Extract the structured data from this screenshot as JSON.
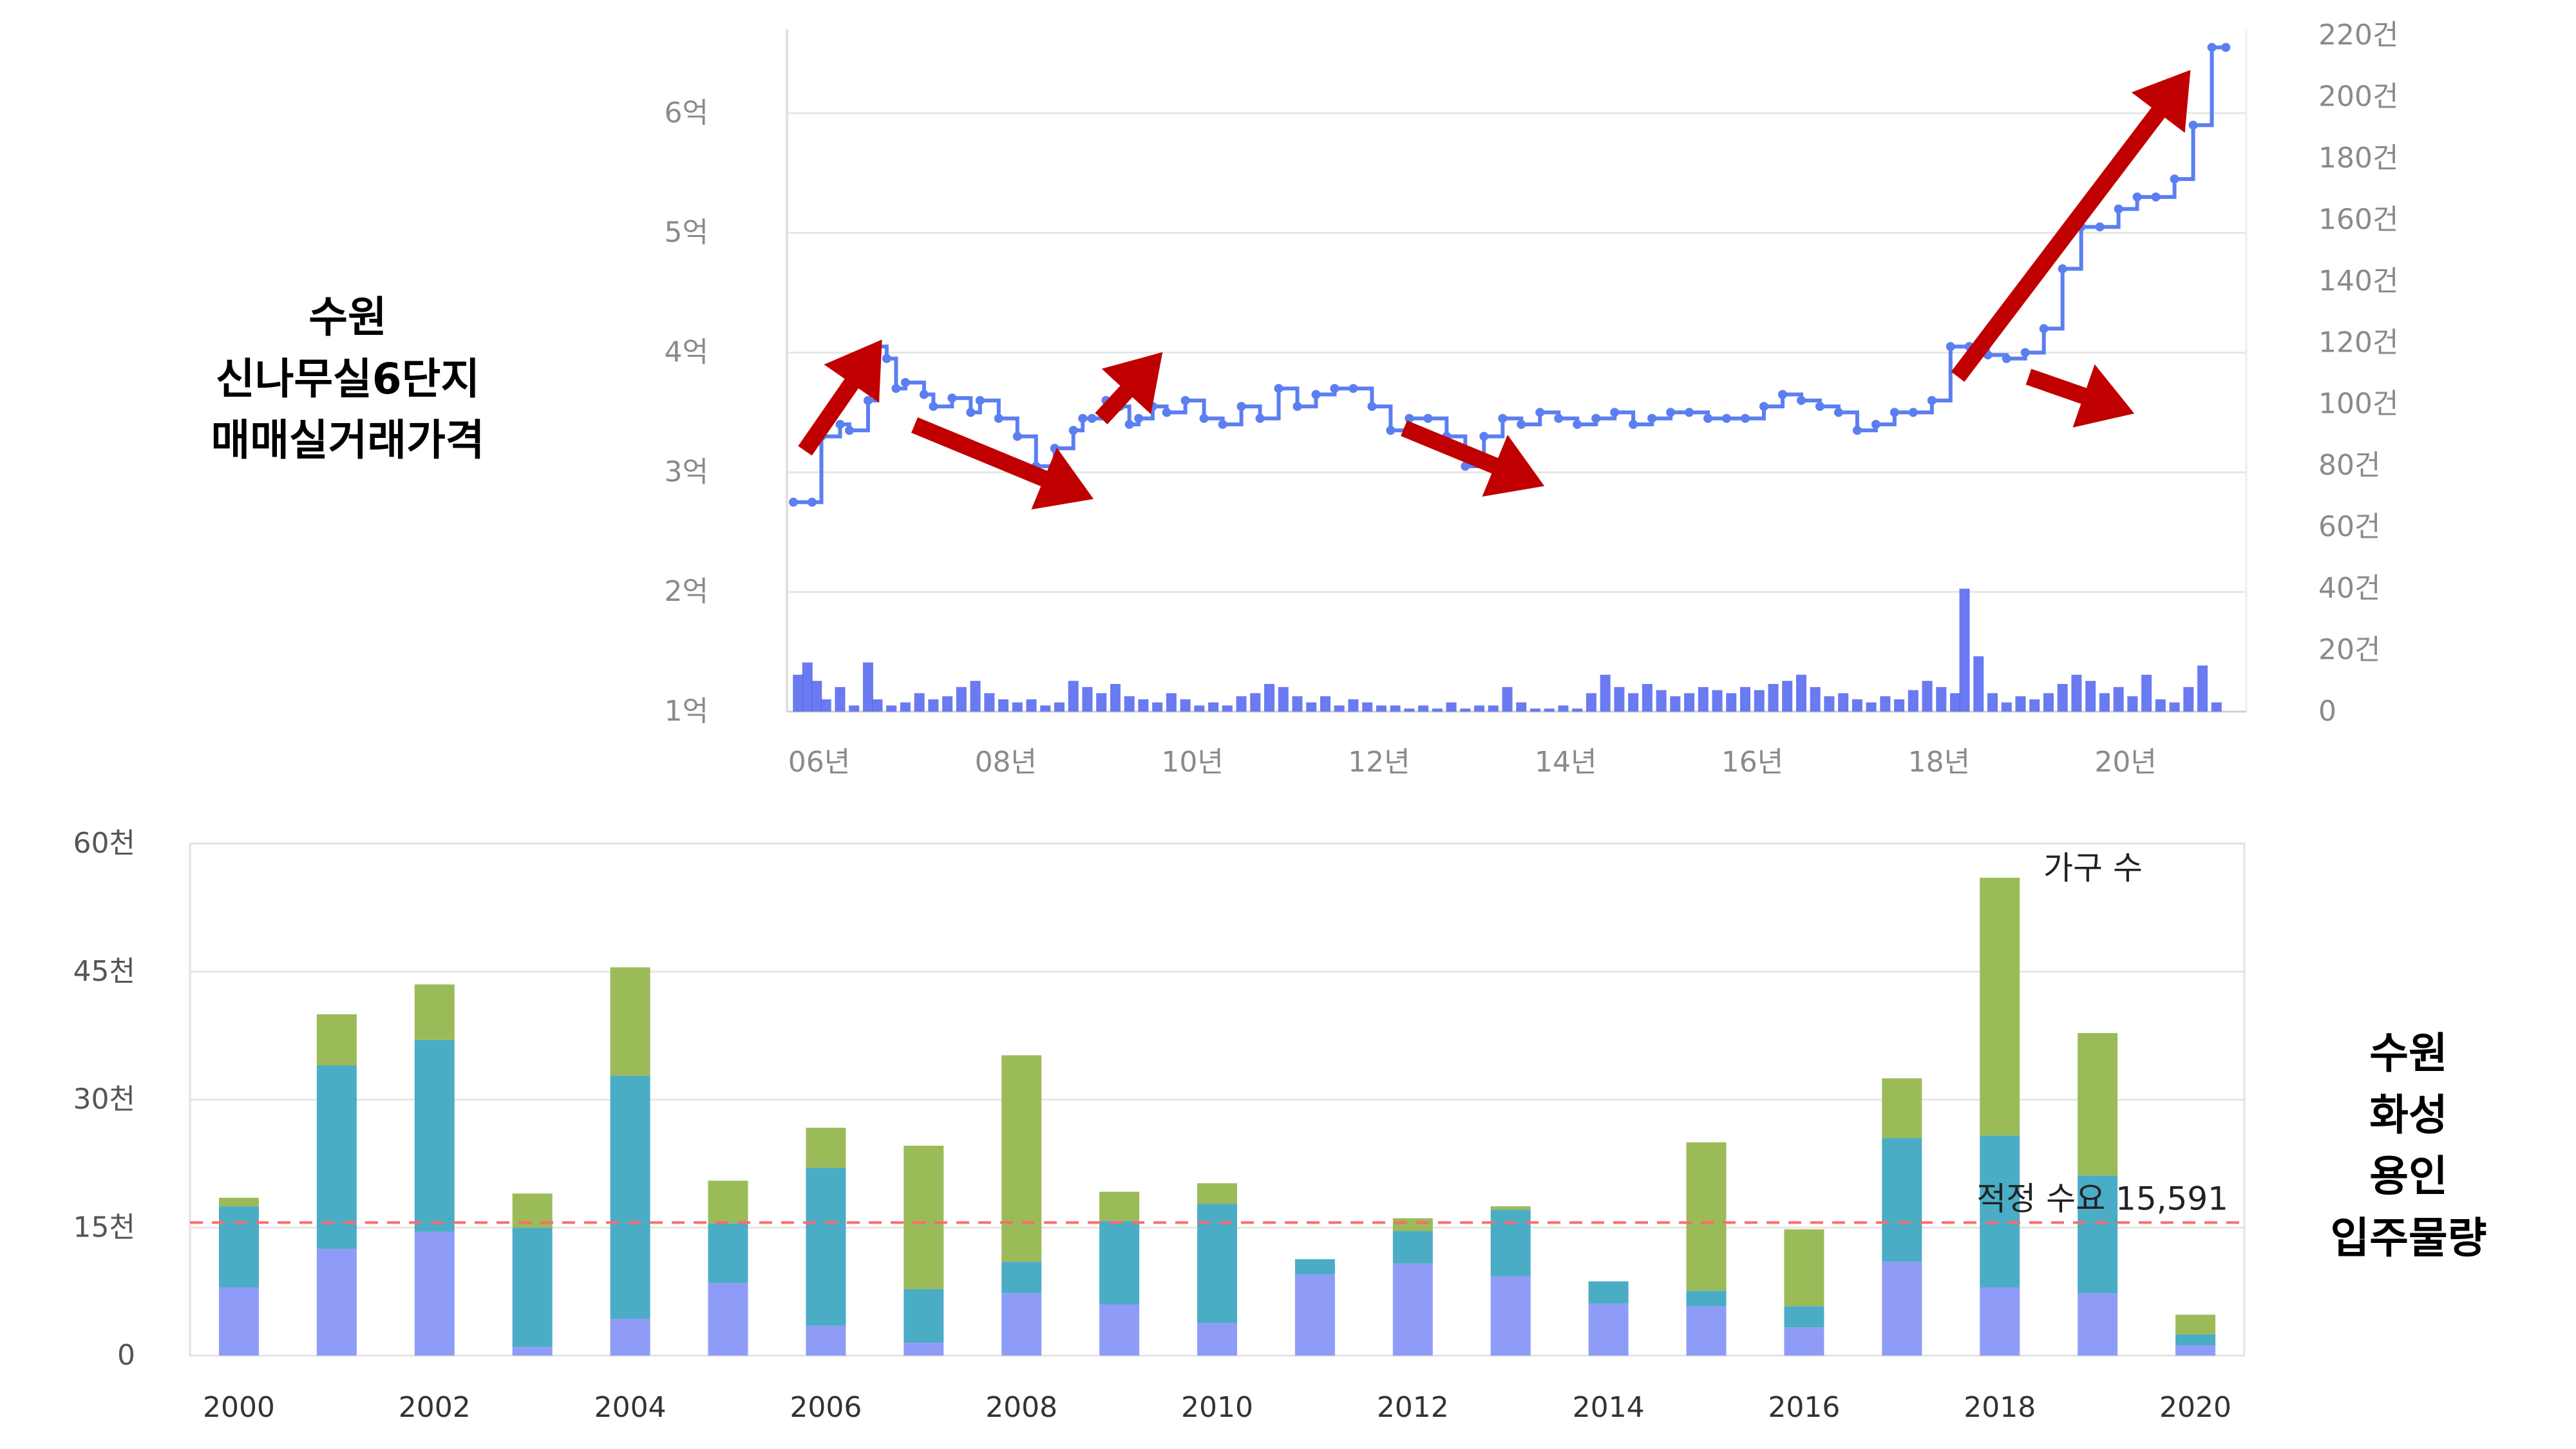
{
  "top_title_lines": [
    "수원",
    "신나무실6단지",
    "매매실거래가격"
  ],
  "bottom_title_lines": [
    "수원",
    "화성",
    "용인",
    "입주물량"
  ],
  "colors": {
    "price_line": "#5b7ff0",
    "volume_bar": "#5a6cf0",
    "arrow": "#c00000",
    "bar_green": "#9bbb59",
    "bar_teal": "#4bacc6",
    "bar_purple": "#8f9cf7",
    "ref_line": "#ff6b6b",
    "grid": "#e6e6e6"
  },
  "chart_data": [
    {
      "type": "line",
      "title": "",
      "y_left": {
        "ticks": [
          "1억",
          "2억",
          "3억",
          "4억",
          "5억",
          "6억"
        ],
        "values": [
          1,
          2,
          3,
          4,
          5,
          6
        ],
        "range": [
          1,
          6.65
        ],
        "unit": "억"
      },
      "y_right": {
        "ticks": [
          "0",
          "20건",
          "40건",
          "60건",
          "80건",
          "100건",
          "120건",
          "140건",
          "160건",
          "180건",
          "200건",
          "220건"
        ],
        "values": [
          0,
          20,
          40,
          60,
          80,
          100,
          120,
          140,
          160,
          180,
          200,
          220
        ],
        "range": [
          0,
          220
        ]
      },
      "x_ticks": [
        "06년",
        "08년",
        "10년",
        "12년",
        "14년",
        "16년",
        "18년",
        "20년"
      ],
      "x_tick_values": [
        2006,
        2008,
        2010,
        2012,
        2014,
        2016,
        2018,
        2020
      ],
      "x_range": [
        2006.0,
        2021.5
      ],
      "price_series": {
        "name": "",
        "x": [
          2006.0,
          2006.2,
          2006.3,
          2006.5,
          2006.6,
          2006.8,
          2006.9,
          2007.0,
          2007.1,
          2007.2,
          2007.4,
          2007.5,
          2007.7,
          2007.9,
          2008.0,
          2008.2,
          2008.4,
          2008.6,
          2008.8,
          2009.0,
          2009.1,
          2009.2,
          2009.35,
          2009.5,
          2009.6,
          2009.7,
          2009.85,
          2010.0,
          2010.2,
          2010.4,
          2010.6,
          2010.8,
          2011.0,
          2011.2,
          2011.4,
          2011.6,
          2011.8,
          2012.0,
          2012.2,
          2012.4,
          2012.6,
          2012.8,
          2013.0,
          2013.2,
          2013.4,
          2013.6,
          2013.8,
          2014.0,
          2014.2,
          2014.4,
          2014.6,
          2014.8,
          2015.0,
          2015.2,
          2015.4,
          2015.6,
          2015.8,
          2016.0,
          2016.2,
          2016.4,
          2016.6,
          2016.8,
          2017.0,
          2017.2,
          2017.4,
          2017.6,
          2017.8,
          2018.0,
          2018.2,
          2018.4,
          2018.6,
          2018.8,
          2019.0,
          2019.2,
          2019.4,
          2019.6,
          2019.8,
          2020.0,
          2020.2,
          2020.4,
          2020.6,
          2020.8,
          2021.0,
          2021.2,
          2021.35
        ],
        "values": [
          2.75,
          2.75,
          3.3,
          3.4,
          3.35,
          3.6,
          4.05,
          3.95,
          3.7,
          3.75,
          3.65,
          3.55,
          3.62,
          3.5,
          3.6,
          3.45,
          3.3,
          3.05,
          3.2,
          3.35,
          3.45,
          3.45,
          3.6,
          3.55,
          3.4,
          3.45,
          3.55,
          3.5,
          3.6,
          3.45,
          3.4,
          3.55,
          3.45,
          3.7,
          3.55,
          3.65,
          3.7,
          3.7,
          3.55,
          3.35,
          3.45,
          3.45,
          3.3,
          3.05,
          3.3,
          3.45,
          3.4,
          3.5,
          3.45,
          3.4,
          3.45,
          3.5,
          3.4,
          3.45,
          3.5,
          3.5,
          3.45,
          3.45,
          3.45,
          3.55,
          3.65,
          3.6,
          3.55,
          3.5,
          3.35,
          3.4,
          3.5,
          3.5,
          3.6,
          4.05,
          4.05,
          3.98,
          3.95,
          4.0,
          4.2,
          4.7,
          5.05,
          5.05,
          5.2,
          5.3,
          5.3,
          5.45,
          5.9,
          6.55,
          6.55
        ]
      },
      "volume_series": {
        "name": "",
        "x": [
          2006.05,
          2006.15,
          2006.25,
          2006.35,
          2006.5,
          2006.65,
          2006.8,
          2006.9,
          2007.05,
          2007.2,
          2007.35,
          2007.5,
          2007.65,
          2007.8,
          2007.95,
          2008.1,
          2008.25,
          2008.4,
          2008.55,
          2008.7,
          2008.85,
          2009.0,
          2009.15,
          2009.3,
          2009.45,
          2009.6,
          2009.75,
          2009.9,
          2010.05,
          2010.2,
          2010.35,
          2010.5,
          2010.65,
          2010.8,
          2010.95,
          2011.1,
          2011.25,
          2011.4,
          2011.55,
          2011.7,
          2011.85,
          2012.0,
          2012.15,
          2012.3,
          2012.45,
          2012.6,
          2012.75,
          2012.9,
          2013.05,
          2013.2,
          2013.35,
          2013.5,
          2013.65,
          2013.8,
          2013.95,
          2014.1,
          2014.25,
          2014.4,
          2014.55,
          2014.7,
          2014.85,
          2015.0,
          2015.15,
          2015.3,
          2015.45,
          2015.6,
          2015.75,
          2015.9,
          2016.05,
          2016.2,
          2016.35,
          2016.5,
          2016.65,
          2016.8,
          2016.95,
          2017.1,
          2017.25,
          2017.4,
          2017.55,
          2017.7,
          2017.85,
          2018.0,
          2018.15,
          2018.3,
          2018.45,
          2018.55,
          2018.7,
          2018.85,
          2019.0,
          2019.15,
          2019.3,
          2019.45,
          2019.6,
          2019.75,
          2019.9,
          2020.05,
          2020.2,
          2020.35,
          2020.5,
          2020.65,
          2020.8,
          2020.95,
          2021.1,
          2021.25
        ],
        "values": [
          12,
          16,
          10,
          4,
          8,
          2,
          16,
          4,
          2,
          3,
          6,
          4,
          5,
          8,
          10,
          6,
          4,
          3,
          4,
          2,
          3,
          10,
          8,
          6,
          9,
          5,
          4,
          3,
          6,
          4,
          2,
          3,
          2,
          5,
          6,
          9,
          8,
          5,
          3,
          5,
          2,
          4,
          3,
          2,
          2,
          1,
          2,
          1,
          3,
          1,
          2,
          2,
          8,
          3,
          1,
          1,
          2,
          1,
          6,
          12,
          8,
          6,
          9,
          7,
          5,
          6,
          8,
          7,
          6,
          8,
          7,
          9,
          10,
          12,
          8,
          5,
          6,
          4,
          3,
          5,
          4,
          7,
          10,
          8,
          6,
          40,
          18,
          6,
          3,
          5,
          4,
          6,
          9,
          12,
          10,
          6,
          8,
          5,
          12,
          4,
          3,
          8,
          15,
          3
        ]
      },
      "annotations": "trend arrows"
    },
    {
      "type": "bar",
      "stacked": true,
      "title": "",
      "categories": [
        "2000",
        "2001",
        "2002",
        "2003",
        "2004",
        "2005",
        "2006",
        "2007",
        "2008",
        "2009",
        "2010",
        "2011",
        "2012",
        "2013",
        "2014",
        "2015",
        "2016",
        "2017",
        "2018",
        "2019",
        "2020"
      ],
      "x_tick_labels": [
        "2000",
        "2002",
        "2004",
        "2006",
        "2008",
        "2010",
        "2012",
        "2014",
        "2016",
        "2018",
        "2020"
      ],
      "y_ticks": [
        "0",
        "15천",
        "30천",
        "45천",
        "60천"
      ],
      "y_tick_values": [
        0,
        15000,
        30000,
        45000,
        60000
      ],
      "ylim": [
        0,
        60000
      ],
      "series": [
        {
          "values": [
            8000,
            12500,
            14500,
            1000,
            4300,
            8500,
            3500,
            1500,
            7300,
            6000,
            3800,
            9500,
            10800,
            9300,
            6100,
            5800,
            3300,
            11000,
            8000,
            7300,
            1200
          ]
        },
        {
          "values": [
            9500,
            21500,
            22500,
            14000,
            28500,
            7000,
            18500,
            6300,
            3700,
            9800,
            14000,
            1800,
            3800,
            7800,
            2600,
            1800,
            2500,
            14500,
            17800,
            13800,
            1300
          ]
        },
        {
          "values": [
            1000,
            6000,
            6500,
            4000,
            12700,
            5000,
            4700,
            16800,
            24200,
            3400,
            2400,
            0,
            1500,
            400,
            0,
            17400,
            9000,
            7000,
            30200,
            16700,
            2300
          ]
        }
      ],
      "annotations": {
        "top_label": "가구 수",
        "reference_line": {
          "value": 15591,
          "label": "적정 수요 15,591"
        }
      }
    }
  ]
}
